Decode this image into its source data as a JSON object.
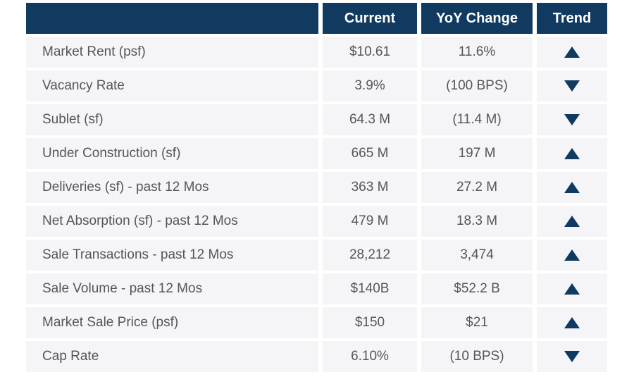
{
  "chart_data": {
    "type": "table",
    "title": "",
    "columns": [
      "",
      "Current",
      "YoY Change",
      "Trend"
    ],
    "rows": [
      {
        "label": "Market Rent (psf)",
        "current": "$10.61",
        "yoy": "11.6%",
        "trend": "up"
      },
      {
        "label": "Vacancy Rate",
        "current": "3.9%",
        "yoy": "(100 BPS)",
        "trend": "down"
      },
      {
        "label": "Sublet (sf)",
        "current": "64.3 M",
        "yoy": "(11.4 M)",
        "trend": "down"
      },
      {
        "label": "Under Construction (sf)",
        "current": "665 M",
        "yoy": "197 M",
        "trend": "up"
      },
      {
        "label": "Deliveries (sf) - past 12 Mos",
        "current": "363 M",
        "yoy": "27.2 M",
        "trend": "up"
      },
      {
        "label": "Net Absorption (sf) - past 12 Mos",
        "current": "479 M",
        "yoy": "18.3 M",
        "trend": "up"
      },
      {
        "label": "Sale Transactions - past 12 Mos",
        "current": "28,212",
        "yoy": "3,474",
        "trend": "up"
      },
      {
        "label": "Sale Volume - past 12 Mos",
        "current": "$140B",
        "yoy": "$52.2 B",
        "trend": "up"
      },
      {
        "label": "Market Sale Price (psf)",
        "current": "$150",
        "yoy": "$21",
        "trend": "up"
      },
      {
        "label": "Cap Rate",
        "current": "6.10%",
        "yoy": "(10 BPS)",
        "trend": "down"
      }
    ]
  },
  "colors": {
    "header_bg": "#103a60",
    "header_text": "#ffffff",
    "row_bg": "#f5f5f7",
    "body_text": "#54565a",
    "arrow": "#103a60",
    "page_bg": "#ffffff"
  }
}
